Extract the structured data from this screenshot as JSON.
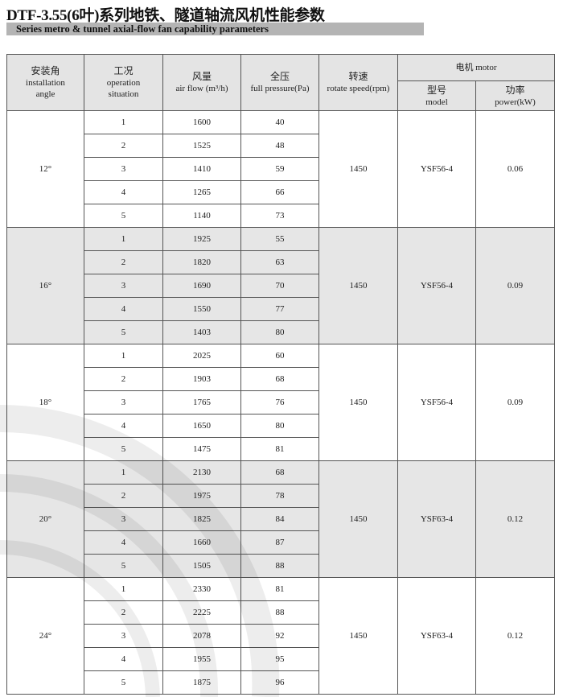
{
  "title": "DTF-3.55(6叶)系列地铁、隧道轴流风机性能参数",
  "subtitle": "Series metro & tunnel axial-flow fan capability parameters",
  "headers": {
    "angle_zh": "安装角",
    "angle_en1": "installation",
    "angle_en2": "angle",
    "op_zh": "工况",
    "op_en1": "operation",
    "op_en2": "situation",
    "flow_zh": "风量",
    "flow_en": "air flow (m³/h)",
    "pressure_zh": "全压",
    "pressure_en": "full pressure(Pa)",
    "speed_zh": "转速",
    "speed_en": "rotate speed(rpm)",
    "motor": "电机 motor",
    "model_zh": "型号",
    "model_en": "model",
    "power_zh": "功率",
    "power_en": "power(kW)"
  },
  "groups": [
    {
      "angle": "12°",
      "speed": "1450",
      "model": "YSF56-4",
      "power": "0.06",
      "rows": [
        [
          "1",
          "1600",
          "40"
        ],
        [
          "2",
          "1525",
          "48"
        ],
        [
          "3",
          "1410",
          "59"
        ],
        [
          "4",
          "1265",
          "66"
        ],
        [
          "5",
          "1140",
          "73"
        ]
      ]
    },
    {
      "angle": "16°",
      "speed": "1450",
      "model": "YSF56-4",
      "power": "0.09",
      "rows": [
        [
          "1",
          "1925",
          "55"
        ],
        [
          "2",
          "1820",
          "63"
        ],
        [
          "3",
          "1690",
          "70"
        ],
        [
          "4",
          "1550",
          "77"
        ],
        [
          "5",
          "1403",
          "80"
        ]
      ]
    },
    {
      "angle": "18°",
      "speed": "1450",
      "model": "YSF56-4",
      "power": "0.09",
      "rows": [
        [
          "1",
          "2025",
          "60"
        ],
        [
          "2",
          "1903",
          "68"
        ],
        [
          "3",
          "1765",
          "76"
        ],
        [
          "4",
          "1650",
          "80"
        ],
        [
          "5",
          "1475",
          "81"
        ]
      ]
    },
    {
      "angle": "20°",
      "speed": "1450",
      "model": "YSF63-4",
      "power": "0.12",
      "rows": [
        [
          "1",
          "2130",
          "68"
        ],
        [
          "2",
          "1975",
          "78"
        ],
        [
          "3",
          "1825",
          "84"
        ],
        [
          "4",
          "1660",
          "87"
        ],
        [
          "5",
          "1505",
          "88"
        ]
      ]
    },
    {
      "angle": "24°",
      "speed": "1450",
      "model": "YSF63-4",
      "power": "0.12",
      "rows": [
        [
          "1",
          "2330",
          "81"
        ],
        [
          "2",
          "2225",
          "88"
        ],
        [
          "3",
          "2078",
          "92"
        ],
        [
          "4",
          "1955",
          "95"
        ],
        [
          "5",
          "1875",
          "96"
        ]
      ]
    }
  ],
  "colors": {
    "header_bg": "#e4e4e4",
    "alt_group_bg": "#e6e6e6",
    "subtitle_bar": "#b4b4b4"
  }
}
